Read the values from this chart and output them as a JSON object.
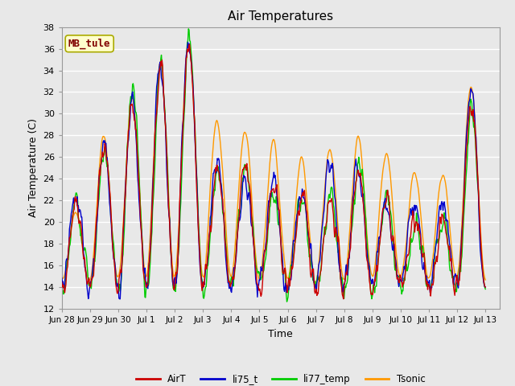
{
  "title": "Air Temperatures",
  "xlabel": "Time",
  "ylabel": "Air Temperature (C)",
  "ylim": [
    12,
    38
  ],
  "yticks": [
    12,
    14,
    16,
    18,
    20,
    22,
    24,
    26,
    28,
    30,
    32,
    34,
    36,
    38
  ],
  "fig_bg_color": "#e8e8e8",
  "plot_bg_color": "#e8e8e8",
  "annotation_text": "MB_tule",
  "annotation_bg": "#ffffcc",
  "annotation_fg": "#800000",
  "legend_labels": [
    "AirT",
    "li75_t",
    "li77_temp",
    "Tsonic"
  ],
  "legend_colors": [
    "#cc0000",
    "#0000cc",
    "#00cc00",
    "#ff9900"
  ],
  "line_width": 1.0,
  "tick_dates": [
    "Jun 28",
    "Jun 29",
    "Jun 30",
    "Jul 1",
    "Jul 2",
    "Jul 3",
    "Jul 4",
    "Jul 5",
    "Jul 6",
    "Jul 7",
    "Jul 8",
    "Jul 9",
    "Jul 10",
    "Jul 11",
    "Jul 12",
    "Jul 13"
  ],
  "title_fontsize": 11,
  "label_fontsize": 9,
  "tick_fontsize": 8
}
